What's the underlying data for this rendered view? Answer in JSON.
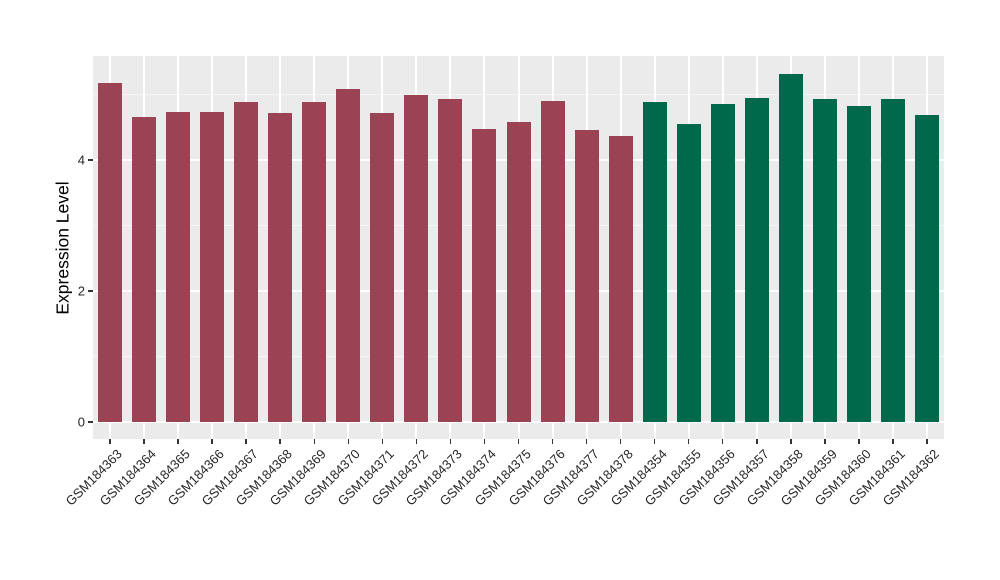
{
  "chart_data": {
    "type": "bar",
    "title": "",
    "xlabel": "",
    "ylabel": "Expression Level",
    "ylim": [
      0,
      5.6
    ],
    "yticks": [
      0,
      2,
      4
    ],
    "yticks_minor": [
      1,
      3,
      5
    ],
    "grid": "on",
    "legend_position": "none",
    "categories": [
      "GSM184363",
      "GSM184364",
      "GSM184365",
      "GSM184366",
      "GSM184367",
      "GSM184368",
      "GSM184369",
      "GSM184370",
      "GSM184371",
      "GSM184372",
      "GSM184373",
      "GSM184374",
      "GSM184375",
      "GSM184376",
      "GSM184377",
      "GSM184378",
      "GSM184354",
      "GSM184355",
      "GSM184356",
      "GSM184357",
      "GSM184358",
      "GSM184359",
      "GSM184360",
      "GSM184361",
      "GSM184362"
    ],
    "values": [
      5.18,
      4.65,
      4.73,
      4.73,
      4.88,
      4.72,
      4.88,
      5.08,
      4.72,
      5.0,
      4.93,
      4.48,
      4.58,
      4.9,
      4.46,
      4.37,
      4.88,
      4.55,
      4.85,
      4.95,
      5.31,
      4.93,
      4.82,
      4.93,
      4.68
    ],
    "bar_groups": [
      0,
      0,
      0,
      0,
      0,
      0,
      0,
      0,
      0,
      0,
      0,
      0,
      0,
      0,
      0,
      0,
      1,
      1,
      1,
      1,
      1,
      1,
      1,
      1,
      1
    ],
    "group_colors": [
      "#9B4355",
      "#00694B"
    ]
  },
  "style_colors": {
    "panel_background": "#EBEBEB",
    "gridline_major": "#FFFFFF",
    "tick_mark": "#333333",
    "tick_label": "#262626",
    "axis_title": "#000000"
  }
}
